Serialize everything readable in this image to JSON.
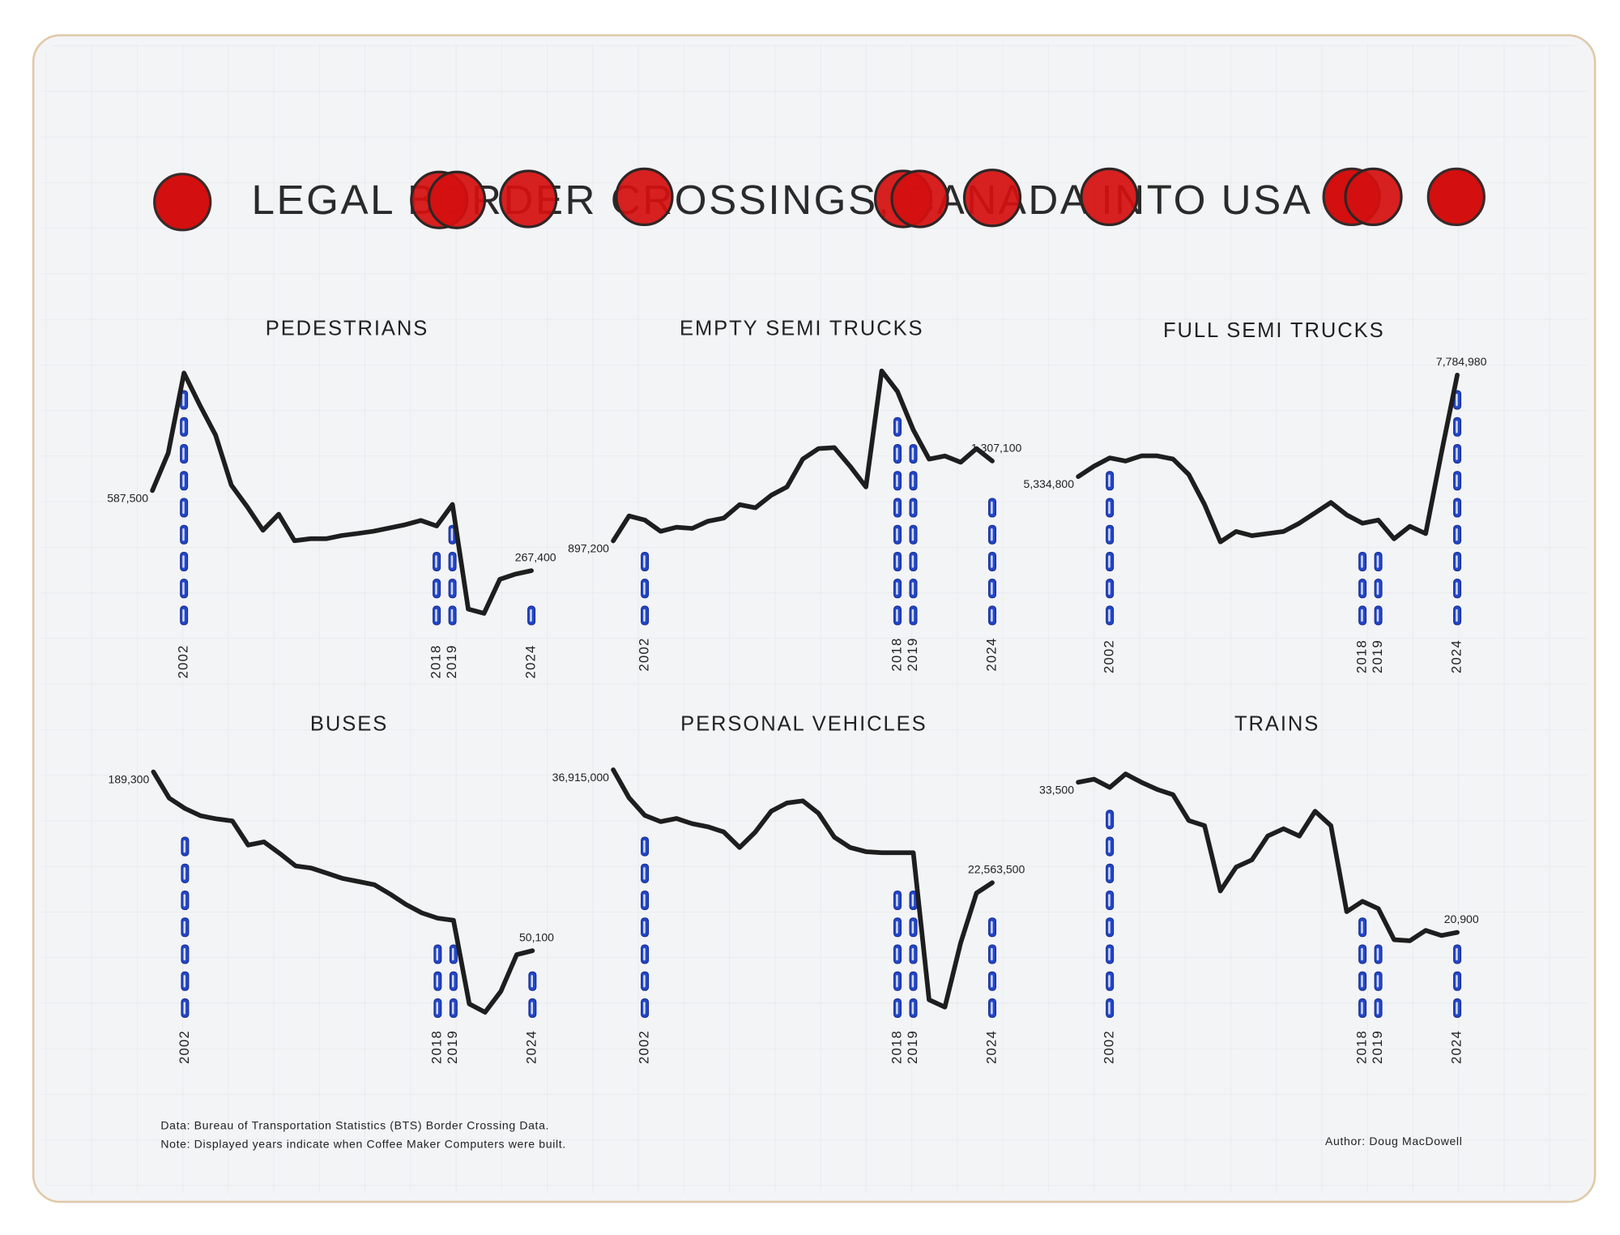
{
  "title": "LEGAL BORDER CROSSINGS, CANADA INTO USA",
  "source": "Data: Bureau of Transportation Statistics (BTS) Border Crossing Data.",
  "note": "Note: Displayed years indicate when Coffee Maker Computers were built.",
  "author": "Author: Doug MacDowell",
  "chart_data": [
    {
      "type": "line",
      "title": "PEDESTRIANS",
      "color": "#1e1e1e",
      "x": [
        2000,
        2001,
        2002,
        2003,
        2004,
        2005,
        2006,
        2007,
        2008,
        2009,
        2010,
        2011,
        2012,
        2013,
        2014,
        2015,
        2016,
        2017,
        2018,
        2019,
        2020,
        2021,
        2022,
        2023,
        2024
      ],
      "values": [
        587500,
        737000,
        1057000,
        929000,
        809000,
        609000,
        523000,
        429000,
        493000,
        387000,
        395000,
        395000,
        408000,
        416000,
        425000,
        438000,
        451000,
        468000,
        446000,
        532000,
        114000,
        97000,
        233000,
        254000,
        267400
      ],
      "value_labels": [
        "587,500",
        null,
        null,
        null,
        null,
        null,
        null,
        null,
        null,
        null,
        null,
        null,
        null,
        null,
        null,
        null,
        null,
        null,
        null,
        null,
        null,
        null,
        null,
        null,
        "267,400"
      ],
      "highlight_years": [
        2002,
        2018,
        2019,
        2024
      ],
      "highlight_color": "#2346c8"
    },
    {
      "type": "line",
      "title": "EMPTY SEMI TRUCKS",
      "color": "#1e1e1e",
      "x": [
        2000,
        2001,
        2002,
        2003,
        2004,
        2005,
        2006,
        2007,
        2008,
        2009,
        2010,
        2011,
        2012,
        2013,
        2014,
        2015,
        2016,
        2017,
        2018,
        2019,
        2020,
        2021,
        2022,
        2023,
        2024
      ],
      "values": [
        897200,
        1025000,
        1004000,
        946000,
        967000,
        961000,
        998000,
        1014000,
        1083000,
        1067000,
        1131000,
        1174000,
        1317000,
        1371000,
        1376000,
        1280000,
        1174000,
        1770000,
        1664000,
        1467000,
        1317000,
        1333000,
        1301000,
        1371000,
        1307100
      ],
      "value_labels": [
        "897,200",
        null,
        null,
        null,
        null,
        null,
        null,
        null,
        null,
        null,
        null,
        null,
        null,
        null,
        null,
        null,
        null,
        null,
        null,
        null,
        null,
        null,
        null,
        null,
        "1,307,100"
      ],
      "highlight_years": [
        2002,
        2018,
        2019,
        2024
      ],
      "highlight_color": "#2346c8"
    },
    {
      "type": "line",
      "title": "FULL SEMI TRUCKS",
      "color": "#1e1e1e",
      "x": [
        2000,
        2001,
        2002,
        2003,
        2004,
        2005,
        2006,
        2007,
        2008,
        2009,
        2010,
        2011,
        2012,
        2013,
        2014,
        2015,
        2016,
        2017,
        2018,
        2019,
        2020,
        2021,
        2022,
        2023,
        2024
      ],
      "values": [
        5334800,
        5585000,
        5785000,
        5710000,
        5835000,
        5835000,
        5760000,
        5385000,
        4660000,
        3760000,
        4010000,
        3910000,
        3960000,
        4010000,
        4210000,
        4460000,
        4710000,
        4410000,
        4210000,
        4285000,
        3835000,
        4135000,
        3960000,
        5910000,
        7784980
      ],
      "value_labels": [
        "5,334,800",
        null,
        null,
        null,
        null,
        null,
        null,
        null,
        null,
        null,
        null,
        null,
        null,
        null,
        null,
        null,
        null,
        null,
        null,
        null,
        null,
        null,
        null,
        null,
        "7,784,980"
      ],
      "highlight_years": [
        2002,
        2018,
        2019,
        2024
      ],
      "highlight_color": "#2346c8"
    },
    {
      "type": "line",
      "title": "BUSES",
      "color": "#1e1e1e",
      "x": [
        2000,
        2001,
        2002,
        2003,
        2004,
        2005,
        2006,
        2007,
        2008,
        2009,
        2010,
        2011,
        2012,
        2013,
        2014,
        2015,
        2016,
        2017,
        2018,
        2019,
        2020,
        2021,
        2022,
        2023,
        2024
      ],
      "values": [
        189300,
        168900,
        160800,
        155100,
        152700,
        151100,
        132300,
        134800,
        125800,
        116100,
        114400,
        110400,
        106300,
        103900,
        101400,
        94100,
        86000,
        79500,
        75400,
        73800,
        8700,
        2200,
        18500,
        47000,
        50100
      ],
      "value_labels": [
        "189,300",
        null,
        null,
        null,
        null,
        null,
        null,
        null,
        null,
        null,
        null,
        null,
        null,
        null,
        null,
        null,
        null,
        null,
        null,
        null,
        null,
        null,
        null,
        null,
        "50,100"
      ],
      "highlight_years": [
        2002,
        2018,
        2019,
        2024
      ],
      "highlight_color": "#2346c8"
    },
    {
      "type": "line",
      "title": "PERSONAL VEHICLES",
      "color": "#1e1e1e",
      "x": [
        2000,
        2001,
        2002,
        2003,
        2004,
        2005,
        2006,
        2007,
        2008,
        2009,
        2010,
        2011,
        2012,
        2013,
        2014,
        2015,
        2016,
        2017,
        2018,
        2019,
        2020,
        2021,
        2022,
        2023,
        2024
      ],
      "values": [
        36915000,
        33360000,
        31122000,
        30332000,
        30727000,
        30068000,
        29673000,
        29015000,
        27040000,
        29015000,
        31648000,
        32701000,
        32965000,
        31385000,
        28357000,
        27040000,
        26514000,
        26382000,
        26382000,
        26382000,
        7686000,
        6764000,
        14927000,
        21247000,
        22563500
      ],
      "value_labels": [
        "36,915,000",
        null,
        null,
        null,
        null,
        null,
        null,
        null,
        null,
        null,
        null,
        null,
        null,
        null,
        null,
        null,
        null,
        null,
        null,
        null,
        null,
        null,
        null,
        null,
        "22,563,500"
      ],
      "highlight_years": [
        2002,
        2018,
        2019,
        2024
      ],
      "highlight_color": "#2346c8"
    },
    {
      "type": "line",
      "title": "TRAINS",
      "color": "#1e1e1e",
      "x": [
        2000,
        2001,
        2002,
        2003,
        2004,
        2005,
        2006,
        2007,
        2008,
        2009,
        2010,
        2011,
        2012,
        2013,
        2014,
        2015,
        2016,
        2017,
        2018,
        2019,
        2020,
        2021,
        2022,
        2023,
        2024
      ],
      "values": [
        33500,
        33760,
        33070,
        34200,
        33500,
        32900,
        32460,
        30290,
        29860,
        24380,
        26380,
        26990,
        28990,
        29600,
        28990,
        31070,
        29860,
        22640,
        23510,
        22900,
        20290,
        20200,
        21070,
        20640,
        20900
      ],
      "value_labels": [
        "33,500",
        null,
        null,
        null,
        null,
        null,
        null,
        null,
        null,
        null,
        null,
        null,
        null,
        null,
        null,
        null,
        null,
        null,
        null,
        null,
        null,
        null,
        null,
        null,
        "20,900"
      ],
      "highlight_years": [
        2002,
        2018,
        2019,
        2024
      ],
      "highlight_color": "#2346c8"
    }
  ]
}
